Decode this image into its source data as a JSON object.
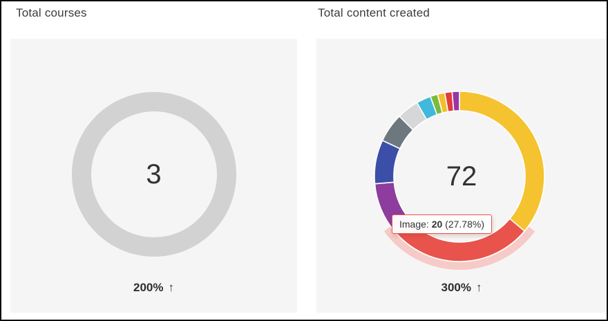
{
  "page": {
    "background": "#ffffff",
    "card_background": "#f6f5f5",
    "border_color": "#0d0d0d",
    "text_color": "#3b3b3b"
  },
  "chart_data": [
    {
      "type": "pie",
      "variant": "donut",
      "title": "Total courses",
      "center_label": "3",
      "total": 3,
      "legend": "off",
      "segments": [
        {
          "label": "courses",
          "value": 3,
          "color": "#d2d2d2"
        }
      ],
      "footer": {
        "percent": "200%",
        "arrow": "↑",
        "direction": "up"
      }
    },
    {
      "type": "pie",
      "variant": "donut",
      "title": "Total content created",
      "center_label": "72",
      "total": 72,
      "legend": "off",
      "start_angle": "top, clockwise",
      "halo_color": "#f5cac7",
      "segments": [
        {
          "label": "yellow-large",
          "value": 26,
          "color": "#f4c32f"
        },
        {
          "label": "Image",
          "value": 20,
          "percent": "27.78%",
          "color": "#e8544b",
          "hovered": true
        },
        {
          "label": "purple",
          "value": 7,
          "color": "#8e3c9e"
        },
        {
          "label": "blue",
          "value": 6,
          "color": "#3c4fa8"
        },
        {
          "label": "dark-gray",
          "value": 4,
          "color": "#6c787e"
        },
        {
          "label": "light-gray",
          "value": 3,
          "color": "#d5d7d8"
        },
        {
          "label": "cyan",
          "value": 2,
          "color": "#41b8dc"
        },
        {
          "label": "green",
          "value": 1,
          "color": "#7cba3c"
        },
        {
          "label": "yellow-small",
          "value": 1,
          "color": "#f2bf2d"
        },
        {
          "label": "red-small",
          "value": 1,
          "color": "#e23c3c"
        },
        {
          "label": "purple-small",
          "value": 1,
          "color": "#9b35a5"
        }
      ],
      "tooltip": {
        "label": "Image: ",
        "value": "20",
        "percent": " (27.78%)",
        "border_color": "#e8544b"
      },
      "footer": {
        "percent": "300%",
        "arrow": "↑",
        "direction": "up"
      }
    }
  ]
}
